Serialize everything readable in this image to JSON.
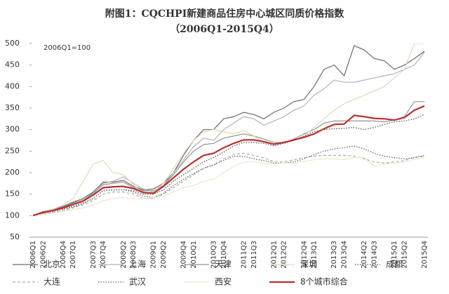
{
  "chart_data": {
    "type": "line",
    "title": "附图1：CQCHPI新建商品住房中心城区同质价格指数",
    "subtitle": "（2006Q1-2015Q4）",
    "annotation": "2006Q1=100",
    "categories": [
      "2006Q1",
      "2006Q2",
      null,
      "2006Q4",
      "2007Q1",
      null,
      "2007Q3",
      "2007Q4",
      null,
      "2008Q2",
      "2008Q3",
      null,
      "2009Q1",
      "2009Q2",
      null,
      "2009Q4",
      "2010Q1",
      null,
      "2010Q3",
      "2010Q4",
      null,
      "2011Q2",
      "2011Q3",
      null,
      "2012Q1",
      "2012Q2",
      null,
      "2012Q4",
      "2013Q1",
      null,
      "2013Q3",
      "2013Q4",
      null,
      "2014Q2",
      "2014Q3",
      null,
      "2015Q1",
      "2015Q2",
      null,
      "2015Q4"
    ],
    "ylim": [
      50,
      500
    ],
    "yticks": [
      50,
      100,
      150,
      200,
      250,
      300,
      350,
      400,
      450,
      500
    ],
    "series": [
      {
        "name": "北京",
        "color": "#6b6b6b",
        "dash": "solid",
        "values": [
          100,
          108,
          113,
          120,
          130,
          140,
          155,
          178,
          178,
          182,
          168,
          160,
          162,
          175,
          200,
          240,
          275,
          300,
          300,
          325,
          330,
          340,
          335,
          325,
          340,
          350,
          365,
          370,
          400,
          440,
          450,
          425,
          495,
          485,
          465,
          460,
          440,
          450,
          465,
          482
        ]
      },
      {
        "name": "上海",
        "color": "#b3b3b3",
        "dash": "solid",
        "values": [
          100,
          106,
          112,
          118,
          128,
          138,
          150,
          175,
          180,
          190,
          175,
          162,
          155,
          170,
          200,
          230,
          260,
          280,
          275,
          300,
          315,
          330,
          325,
          310,
          320,
          330,
          345,
          355,
          380,
          395,
          415,
          410,
          410,
          415,
          420,
          425,
          430,
          440,
          450,
          480
        ]
      },
      {
        "name": "天津",
        "color": "#959595",
        "dash": "solid",
        "values": [
          100,
          107,
          115,
          122,
          132,
          140,
          152,
          172,
          175,
          178,
          165,
          158,
          158,
          170,
          195,
          225,
          250,
          265,
          268,
          280,
          285,
          290,
          285,
          278,
          270,
          270,
          278,
          290,
          300,
          315,
          320,
          320,
          320,
          320,
          320,
          318,
          322,
          330,
          365,
          365
        ]
      },
      {
        "name": "深圳",
        "color": "#e6d7b6",
        "dash": "solid",
        "values": [
          100,
          110,
          115,
          125,
          140,
          180,
          220,
          228,
          200,
          195,
          172,
          150,
          155,
          175,
          210,
          245,
          275,
          295,
          300,
          295,
          290,
          298,
          285,
          270,
          265,
          272,
          275,
          285,
          305,
          325,
          345,
          360,
          370,
          380,
          390,
          400,
          420,
          440,
          500,
          500
        ]
      },
      {
        "name": "成都",
        "color": "#555555",
        "dash": "dotted",
        "values": [
          100,
          106,
          110,
          116,
          122,
          130,
          140,
          158,
          160,
          160,
          158,
          150,
          150,
          160,
          180,
          195,
          210,
          225,
          235,
          248,
          262,
          270,
          270,
          268,
          262,
          268,
          275,
          285,
          295,
          300,
          302,
          303,
          305,
          300,
          305,
          312,
          318,
          320,
          325,
          335
        ]
      },
      {
        "name": "大连",
        "color": "#aaaaaa",
        "dash": "dashed",
        "values": [
          100,
          104,
          108,
          112,
          118,
          125,
          135,
          150,
          155,
          155,
          150,
          140,
          140,
          150,
          165,
          180,
          195,
          210,
          218,
          232,
          242,
          245,
          240,
          235,
          225,
          225,
          230,
          235,
          238,
          240,
          240,
          240,
          238,
          232,
          225,
          222,
          225,
          228,
          235,
          238
        ]
      },
      {
        "name": "武汉",
        "color": "#666666",
        "dash": "dotted",
        "values": [
          100,
          105,
          110,
          115,
          120,
          128,
          140,
          158,
          160,
          160,
          155,
          145,
          142,
          152,
          170,
          185,
          198,
          210,
          218,
          228,
          238,
          238,
          232,
          228,
          222,
          222,
          225,
          232,
          242,
          250,
          255,
          258,
          262,
          255,
          245,
          238,
          235,
          232,
          235,
          240
        ]
      },
      {
        "name": "西安",
        "color": "#efe6cc",
        "dash": "solid",
        "values": [
          100,
          103,
          106,
          110,
          114,
          118,
          125,
          135,
          140,
          142,
          140,
          140,
          142,
          145,
          155,
          165,
          170,
          180,
          185,
          200,
          215,
          225,
          225,
          220,
          220,
          222,
          222,
          226,
          230,
          232,
          232,
          230,
          235,
          235,
          215,
          220,
          222,
          225,
          230,
          235
        ]
      },
      {
        "name": "8个城市综合",
        "color": "#b8312f",
        "dash": "bold",
        "values": [
          100,
          108,
          112,
          118,
          126,
          134,
          148,
          165,
          167,
          168,
          163,
          154,
          152,
          168,
          188,
          208,
          225,
          240,
          245,
          258,
          268,
          276,
          276,
          272,
          266,
          270,
          276,
          282,
          290,
          302,
          312,
          313,
          333,
          330,
          326,
          325,
          322,
          328,
          345,
          355
        ]
      }
    ]
  }
}
